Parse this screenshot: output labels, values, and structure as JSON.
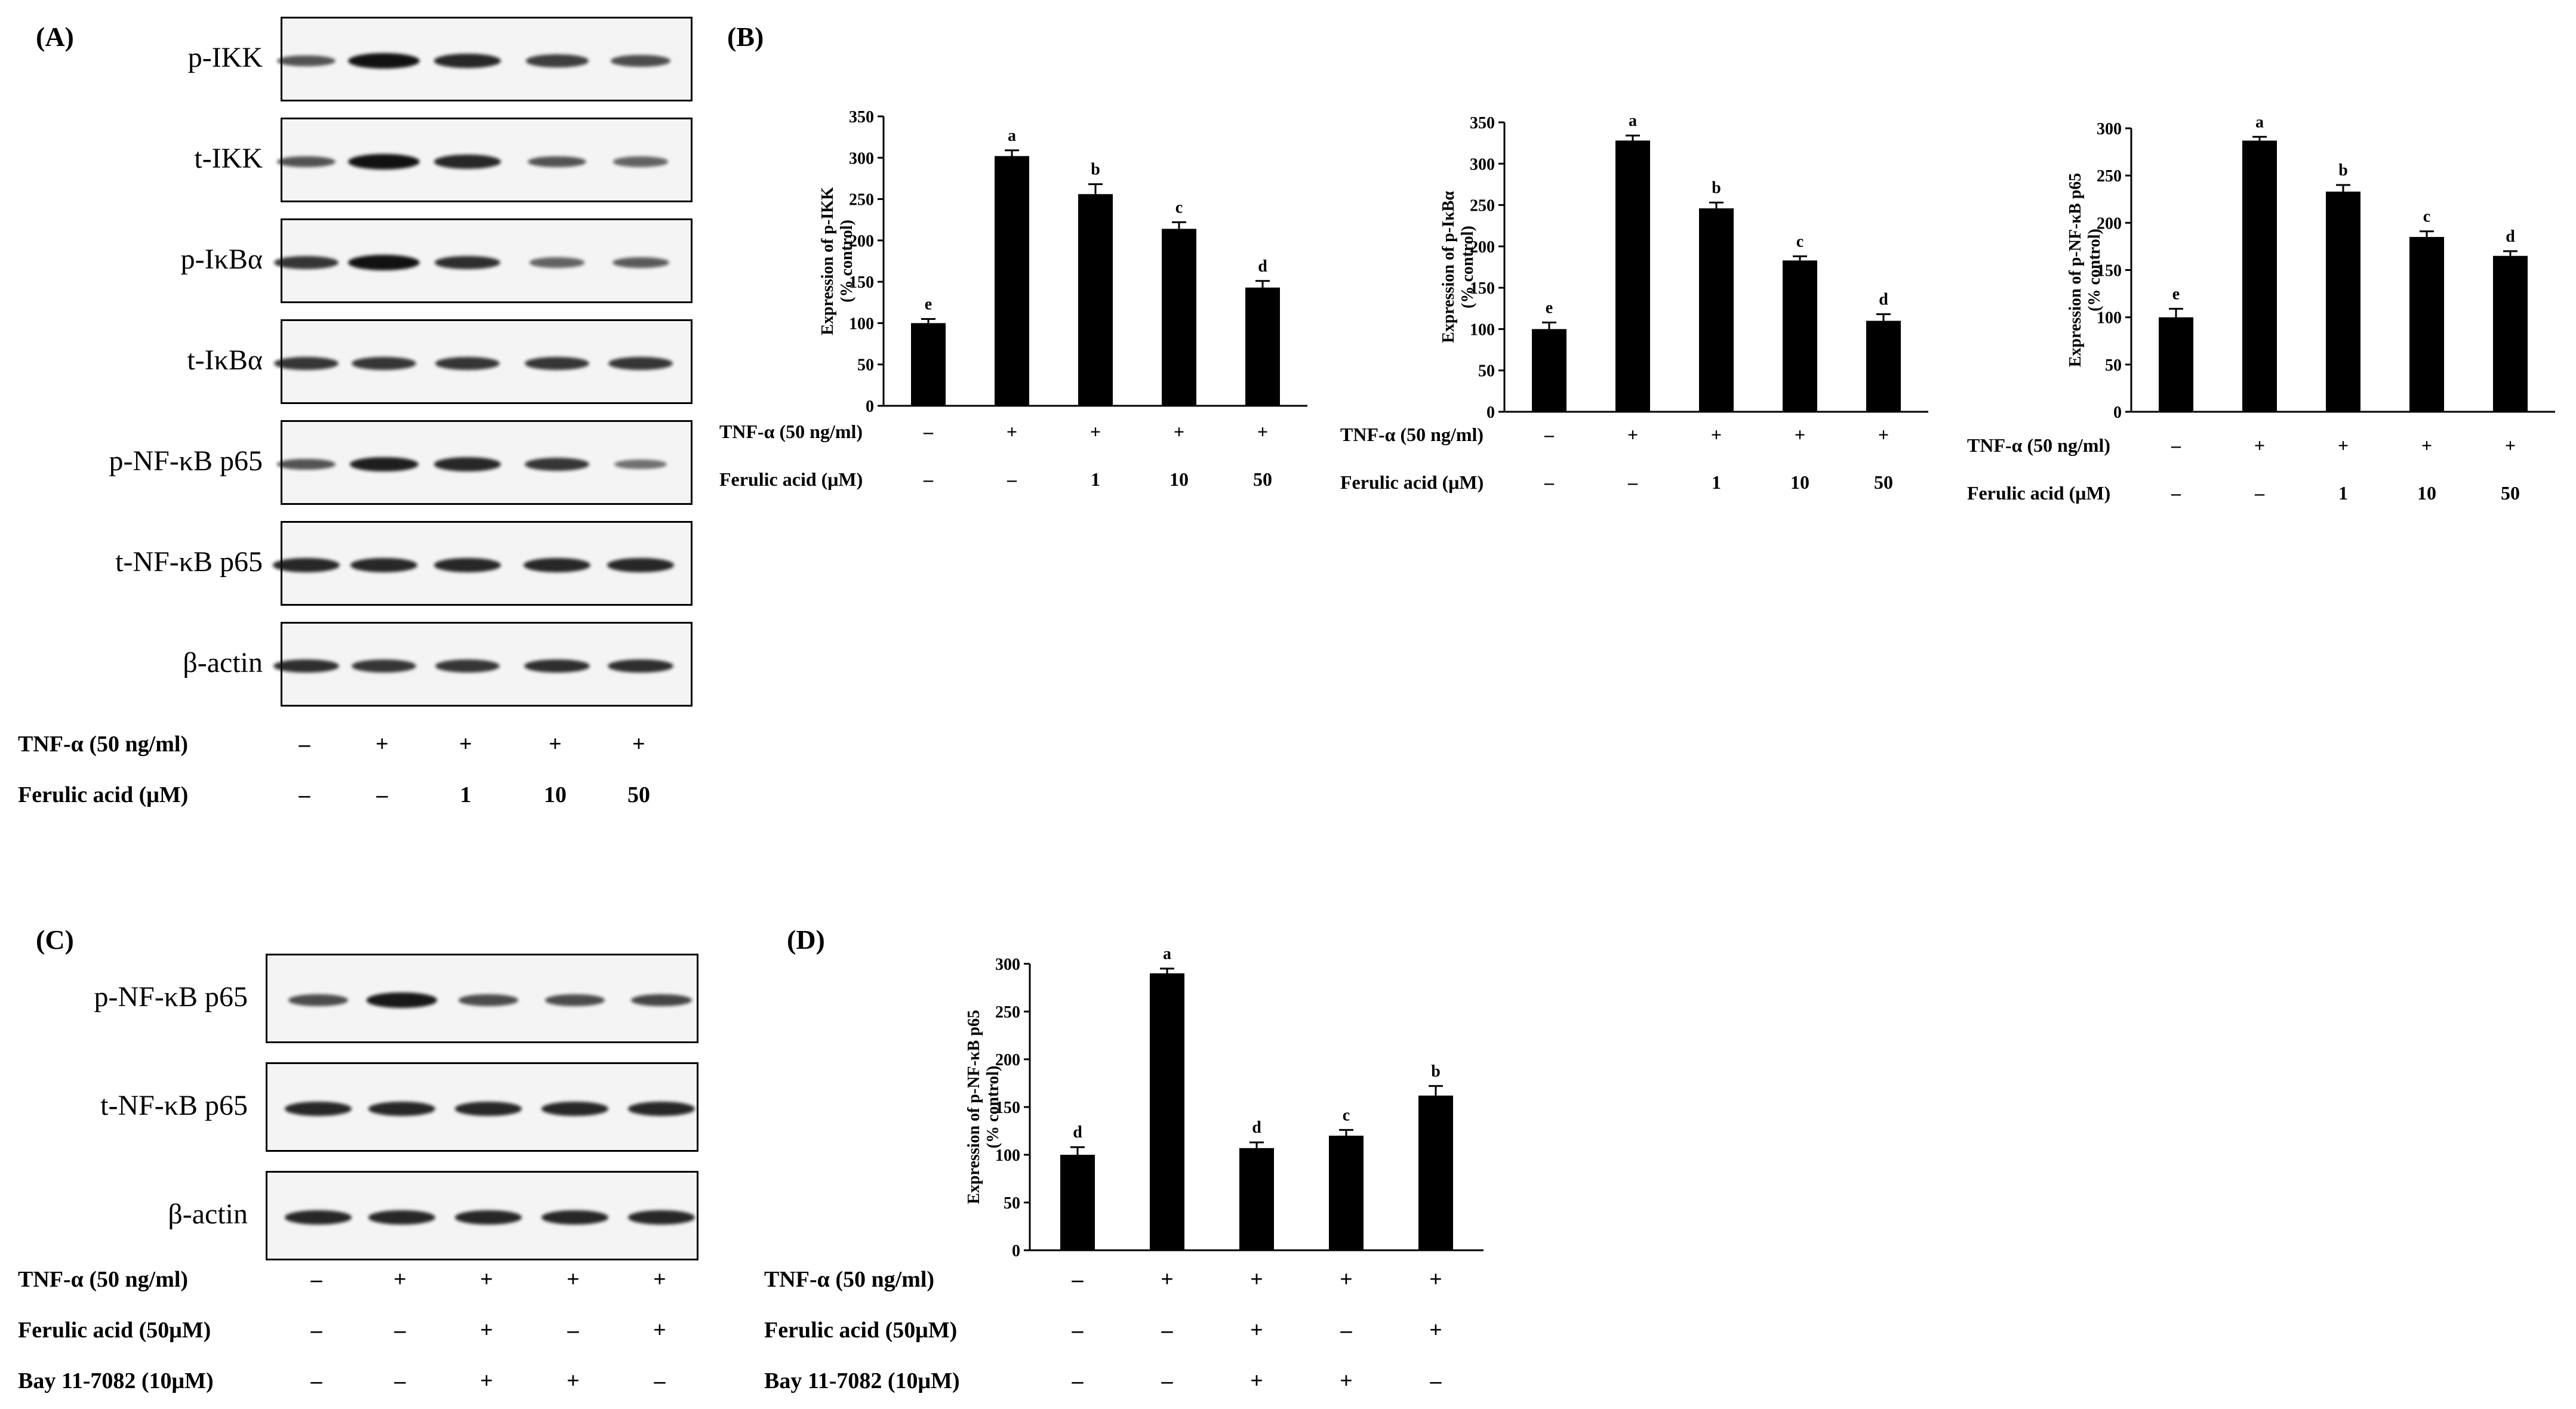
{
  "figure": {
    "panels": {
      "A": "(A)",
      "B": "(B)",
      "C": "(C)",
      "D": "(D)"
    },
    "blot_A": {
      "rows": [
        "p-IKK",
        "t-IKK",
        "p-IκBα",
        "t-IκBα",
        "p-NF-κB p65",
        "t-NF-κB p65",
        "β-actin"
      ],
      "band_intensity": [
        [
          0.55,
          1.0,
          0.85,
          0.7,
          0.6
        ],
        [
          0.55,
          1.0,
          0.85,
          0.55,
          0.45
        ],
        [
          0.75,
          1.0,
          0.8,
          0.45,
          0.5
        ],
        [
          0.75,
          0.75,
          0.75,
          0.75,
          0.75
        ],
        [
          0.55,
          0.9,
          0.85,
          0.75,
          0.35
        ],
        [
          0.85,
          0.85,
          0.85,
          0.85,
          0.85
        ],
        [
          0.8,
          0.75,
          0.75,
          0.8,
          0.8
        ]
      ],
      "conditions": [
        {
          "label": "TNF-α (50 ng/ml)",
          "values": [
            "–",
            "+",
            "+",
            "+",
            "+"
          ]
        },
        {
          "label": "Ferulic acid (μM)",
          "values": [
            "–",
            "–",
            "1",
            "10",
            "50"
          ]
        }
      ]
    },
    "blot_C": {
      "rows": [
        "p-NF-κB p65",
        "t-NF-κB p65",
        "β-actin"
      ],
      "band_intensity": [
        [
          0.6,
          0.95,
          0.6,
          0.6,
          0.65
        ],
        [
          0.85,
          0.85,
          0.85,
          0.85,
          0.85
        ],
        [
          0.85,
          0.85,
          0.85,
          0.85,
          0.85
        ]
      ],
      "conditions": [
        {
          "label": "TNF-α (50 ng/ml)",
          "values": [
            "–",
            "+",
            "+",
            "+",
            "+"
          ]
        },
        {
          "label": "Ferulic acid (50μM)",
          "values": [
            "–",
            "–",
            "+",
            "–",
            "+"
          ]
        },
        {
          "label": "Bay 11-7082 (10μM)",
          "values": [
            "–",
            "–",
            "+",
            "+",
            "–"
          ]
        }
      ]
    }
  },
  "chart_data": [
    {
      "id": "B1",
      "type": "bar",
      "ylabel": "Expression of p-IKK\n(% control)",
      "ylim": [
        0,
        350
      ],
      "yticks": [
        0,
        50,
        100,
        150,
        200,
        250,
        300,
        350
      ],
      "values": [
        100,
        302,
        256,
        214,
        143
      ],
      "errors": [
        5,
        7,
        12,
        8,
        8
      ],
      "letters": [
        "e",
        "a",
        "b",
        "c",
        "d"
      ],
      "conditions": [
        {
          "label": "TNF-α (50 ng/ml)",
          "values": [
            "–",
            "+",
            "+",
            "+",
            "+"
          ]
        },
        {
          "label": "Ferulic acid (μM)",
          "values": [
            "–",
            "–",
            "1",
            "10",
            "50"
          ]
        }
      ]
    },
    {
      "id": "B2",
      "type": "bar",
      "ylabel": "Expression of p-IκBα\n(% control)",
      "ylim": [
        0,
        350
      ],
      "yticks": [
        0,
        50,
        100,
        150,
        200,
        250,
        300,
        350
      ],
      "values": [
        100,
        328,
        246,
        183,
        110
      ],
      "errors": [
        8,
        6,
        7,
        5,
        8
      ],
      "letters": [
        "e",
        "a",
        "b",
        "c",
        "d"
      ],
      "conditions": [
        {
          "label": "TNF-α (50 ng/ml)",
          "values": [
            "–",
            "+",
            "+",
            "+",
            "+"
          ]
        },
        {
          "label": "Ferulic acid (μM)",
          "values": [
            "–",
            "–",
            "1",
            "10",
            "50"
          ]
        }
      ]
    },
    {
      "id": "B3",
      "type": "bar",
      "ylabel": "Expression of p-NF-κB p65\n(% control)",
      "ylim": [
        0,
        300
      ],
      "yticks": [
        0,
        50,
        100,
        150,
        200,
        250,
        300
      ],
      "values": [
        100,
        287,
        233,
        185,
        165
      ],
      "errors": [
        9,
        4,
        7,
        6,
        5
      ],
      "letters": [
        "e",
        "a",
        "b",
        "c",
        "d"
      ],
      "conditions": [
        {
          "label": "TNF-α (50 ng/ml)",
          "values": [
            "–",
            "+",
            "+",
            "+",
            "+"
          ]
        },
        {
          "label": "Ferulic acid (μM)",
          "values": [
            "–",
            "–",
            "1",
            "10",
            "50"
          ]
        }
      ]
    },
    {
      "id": "D",
      "type": "bar",
      "ylabel": "Expression of p-NF-κB p65\n(% control)",
      "ylim": [
        0,
        300
      ],
      "yticks": [
        0,
        50,
        100,
        150,
        200,
        250,
        300
      ],
      "values": [
        100,
        290,
        107,
        120,
        162
      ],
      "errors": [
        8,
        5,
        6,
        6,
        10
      ],
      "letters": [
        "d",
        "a",
        "d",
        "c",
        "b"
      ],
      "conditions": [
        {
          "label": "TNF-α (50 ng/ml)",
          "values": [
            "–",
            "+",
            "+",
            "+",
            "+"
          ]
        },
        {
          "label": "Ferulic acid (50μM)",
          "values": [
            "–",
            "–",
            "+",
            "–",
            "+"
          ]
        },
        {
          "label": "Bay 11-7082 (10μM)",
          "values": [
            "–",
            "–",
            "+",
            "+",
            "–"
          ]
        }
      ]
    }
  ]
}
